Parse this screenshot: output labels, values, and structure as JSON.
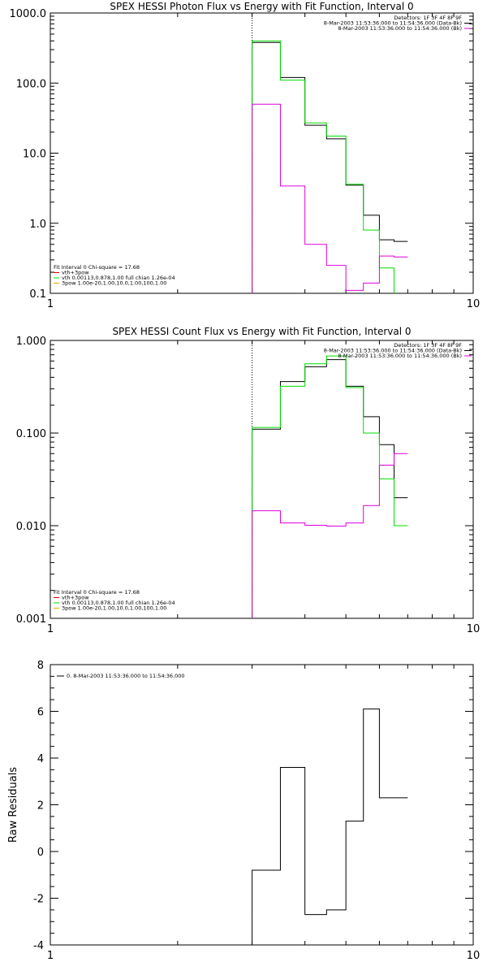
{
  "chart_data": [
    {
      "type": "line",
      "title": "SPEX HESSI Photon Flux vs Energy with Fit Function, Interval 0",
      "xscale": "log",
      "yscale": "log",
      "xlim": [
        1,
        10
      ],
      "ylim": [
        0.1,
        1000
      ],
      "xticks": [
        "1",
        "10"
      ],
      "yticks": [
        "0.1",
        "1.0",
        "10.0",
        "100.0",
        "1000.0"
      ],
      "vline_x": 3.0,
      "info_lines": [
        "Detectors: 1F 3F 4F 8F 9F",
        "8-Mar-2003 11:53:36.000 to 11:54:36.000 (Data-Bk)",
        "8-Mar-2003 11:53:36.000 to 11:54:36.000 (Bk)"
      ],
      "fit_lines": [
        "Fit Interval 0   Chi-square = 17.68",
        "vth+3pow",
        "vth 0.00113,0.878,1.00  full chian 1.26e-04",
        "3pow 1.00e-20,1.00,10.0,1.00,100,1.00"
      ],
      "edges": [
        3.0,
        3.5,
        4.0,
        4.5,
        5.0,
        5.5,
        6.0,
        6.5,
        7.0
      ],
      "series": [
        {
          "color": "#000000",
          "values": [
            380,
            120,
            25,
            16,
            3.5,
            1.3,
            0.58,
            0.55
          ]
        },
        {
          "color": "#00dd00",
          "values": [
            400,
            110,
            27,
            17.5,
            3.6,
            0.8,
            0.23,
            0.09
          ]
        },
        {
          "color": "#dd00dd",
          "values": [
            50,
            3.4,
            0.5,
            0.25,
            0.11,
            0.14,
            0.34,
            0.33
          ]
        }
      ]
    },
    {
      "type": "line",
      "title": "SPEX HESSI Count Flux vs Energy with Fit Function, Interval 0",
      "xscale": "log",
      "yscale": "log",
      "xlim": [
        1,
        10
      ],
      "ylim": [
        0.001,
        1
      ],
      "xticks": [
        "1",
        "10"
      ],
      "yticks": [
        "0.001",
        "0.010",
        "0.100",
        "1.000"
      ],
      "vline_x": 3.0,
      "info_lines": [
        "Detectors: 1F 3F 4F 8F 9F",
        "8-Mar-2003 11:53:36.000 to 11:54:36.000 (Data-Bk)",
        "8-Mar-2003 11:53:36.000 to 11:54:36.000 (Bk)"
      ],
      "fit_lines": [
        "Fit Interval 0   Chi-square = 17.68",
        "vth+3pow",
        "vth 0.00113,0.878,1.00  full chian 1.26e-04",
        "3pow 1.00e-20,1.00,10.0,1.00,100,1.00"
      ],
      "edges": [
        3.0,
        3.5,
        4.0,
        4.5,
        5.0,
        5.5,
        6.0,
        6.5,
        7.0
      ],
      "series": [
        {
          "color": "#000000",
          "values": [
            0.11,
            0.36,
            0.52,
            0.62,
            0.32,
            0.15,
            0.075,
            0.02
          ]
        },
        {
          "color": "#00dd00",
          "values": [
            0.115,
            0.32,
            0.56,
            0.68,
            0.31,
            0.1,
            0.032,
            0.01
          ]
        },
        {
          "color": "#dd00dd",
          "values": [
            0.0145,
            0.0107,
            0.0101,
            0.0099,
            0.0107,
            0.0165,
            0.045,
            0.06
          ]
        }
      ]
    },
    {
      "type": "line",
      "title": "",
      "xscale": "log",
      "xlim": [
        1,
        10
      ],
      "ylim": [
        -4,
        8
      ],
      "xticks": [
        "1",
        "10"
      ],
      "yticks": [
        "-4",
        "-2",
        "0",
        "2",
        "4",
        "6",
        "8"
      ],
      "ylabel": "Raw Residuals",
      "legend": "0.  8-Mar-2003 11:53:36.000 to 11:54:36.000",
      "edges": [
        3.0,
        3.5,
        4.0,
        4.5,
        5.0,
        5.5,
        6.0,
        6.5,
        7.0
      ],
      "series": [
        {
          "color": "#000000",
          "values": [
            -0.8,
            3.6,
            -2.7,
            -2.5,
            1.3,
            6.1,
            2.3,
            2.3
          ]
        }
      ]
    }
  ]
}
